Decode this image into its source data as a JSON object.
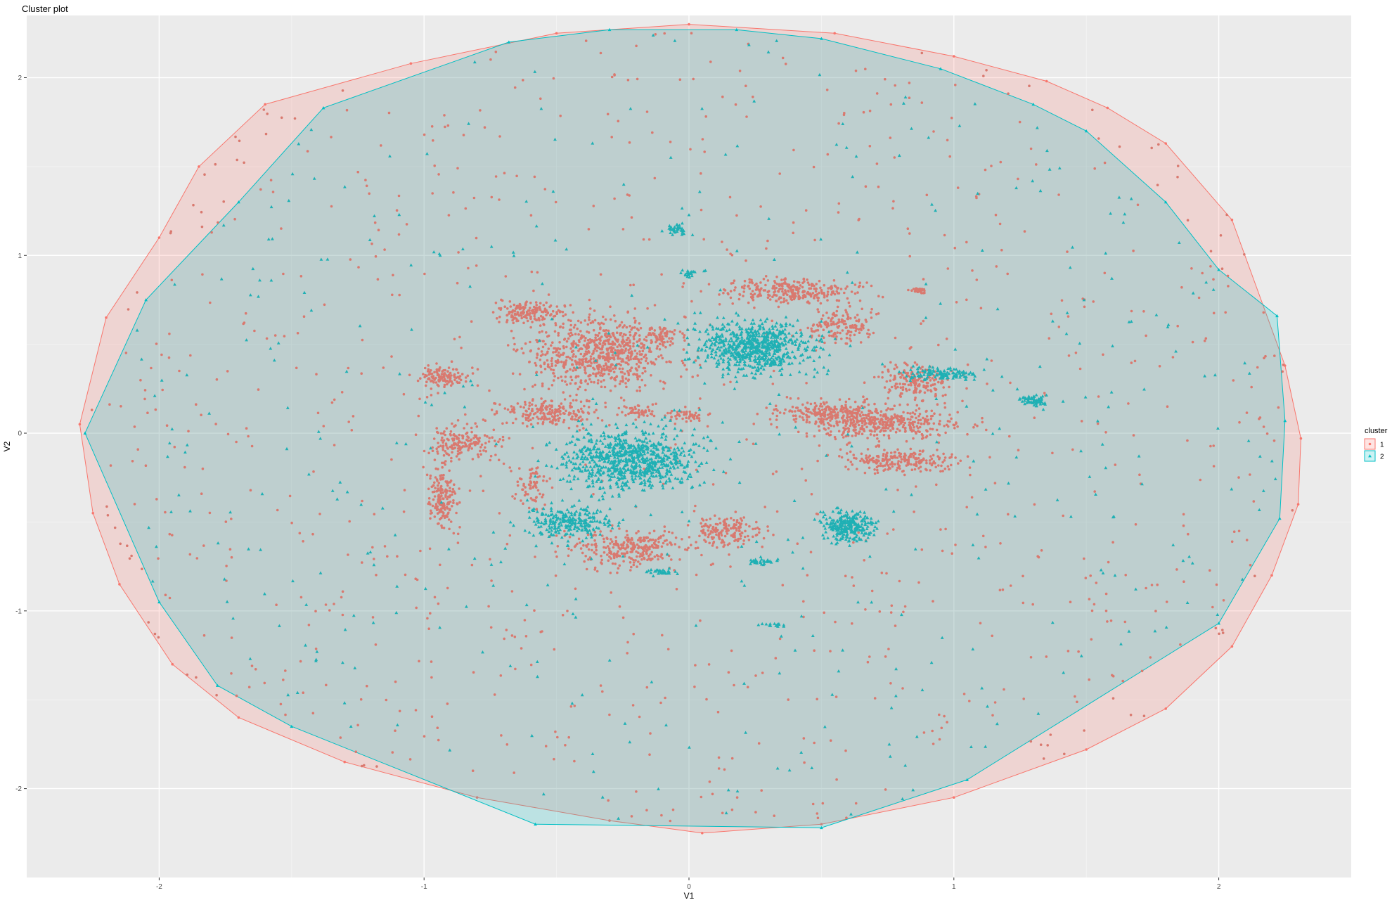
{
  "chart_data": {
    "type": "scatter",
    "title": "Cluster plot",
    "xlabel": "V1",
    "ylabel": "V2",
    "xlim": [
      -2.5,
      2.5
    ],
    "ylim": [
      -2.5,
      2.35
    ],
    "x_ticks": [
      -2,
      -1,
      0,
      1,
      2
    ],
    "y_ticks": [
      -2,
      -1,
      0,
      1,
      2
    ],
    "x_tick_labels": [
      "-2",
      "-1",
      "0",
      "1",
      "2"
    ],
    "y_tick_labels": [
      "-2",
      "-1",
      "0",
      "1",
      "2"
    ],
    "grid": true,
    "legend": {
      "title": "cluster",
      "position": "right",
      "entries": [
        {
          "label": "1",
          "shape": "circle",
          "color": "#F8766D"
        },
        {
          "label": "2",
          "shape": "triangle",
          "color": "#00BFC4"
        }
      ]
    },
    "series": [
      {
        "cluster": "1",
        "marker": "circle",
        "color": "#F8766D",
        "hull": [
          [
            2.31,
            -0.03
          ],
          [
            2.25,
            0.38
          ],
          [
            2.05,
            1.2
          ],
          [
            1.8,
            1.63
          ],
          [
            1.58,
            1.83
          ],
          [
            1.35,
            1.98
          ],
          [
            1.0,
            2.12
          ],
          [
            0.55,
            2.25
          ],
          [
            0.0,
            2.3
          ],
          [
            -0.5,
            2.25
          ],
          [
            -1.05,
            2.08
          ],
          [
            -1.6,
            1.85
          ],
          [
            -1.85,
            1.5
          ],
          [
            -2.0,
            1.1
          ],
          [
            -2.2,
            0.65
          ],
          [
            -2.3,
            0.05
          ],
          [
            -2.25,
            -0.45
          ],
          [
            -2.15,
            -0.85
          ],
          [
            -1.95,
            -1.3
          ],
          [
            -1.7,
            -1.6
          ],
          [
            -1.3,
            -1.85
          ],
          [
            -0.8,
            -2.05
          ],
          [
            -0.3,
            -2.18
          ],
          [
            0.05,
            -2.25
          ],
          [
            0.5,
            -2.2
          ],
          [
            1.0,
            -2.05
          ],
          [
            1.5,
            -1.78
          ],
          [
            1.8,
            -1.55
          ],
          [
            2.05,
            -1.2
          ],
          [
            2.2,
            -0.8
          ],
          [
            2.3,
            -0.4
          ]
        ],
        "clumps": [
          {
            "cx": -0.33,
            "cy": 0.45,
            "rx": 0.25,
            "ry": 0.2,
            "n": 750
          },
          {
            "cx": -0.62,
            "cy": 0.68,
            "rx": 0.13,
            "ry": 0.06,
            "n": 160
          },
          {
            "cx": -0.53,
            "cy": 0.12,
            "rx": 0.18,
            "ry": 0.08,
            "n": 200
          },
          {
            "cx": -0.85,
            "cy": -0.05,
            "rx": 0.13,
            "ry": 0.09,
            "n": 170
          },
          {
            "cx": -0.92,
            "cy": 0.32,
            "rx": 0.09,
            "ry": 0.05,
            "n": 120
          },
          {
            "cx": -0.6,
            "cy": -0.3,
            "rx": 0.05,
            "ry": 0.12,
            "n": 70
          },
          {
            "cx": -0.93,
            "cy": -0.38,
            "rx": 0.05,
            "ry": 0.19,
            "n": 170
          },
          {
            "cx": -0.22,
            "cy": -0.65,
            "rx": 0.22,
            "ry": 0.1,
            "n": 280
          },
          {
            "cx": 0.15,
            "cy": -0.55,
            "rx": 0.12,
            "ry": 0.08,
            "n": 160
          },
          {
            "cx": 0.38,
            "cy": 0.8,
            "rx": 0.23,
            "ry": 0.07,
            "n": 300
          },
          {
            "cx": 0.57,
            "cy": 0.6,
            "rx": 0.12,
            "ry": 0.09,
            "n": 150
          },
          {
            "cx": 0.55,
            "cy": 0.12,
            "rx": 0.22,
            "ry": 0.06,
            "n": 220
          },
          {
            "cx": 0.73,
            "cy": 0.05,
            "rx": 0.3,
            "ry": 0.09,
            "n": 380
          },
          {
            "cx": 0.8,
            "cy": -0.15,
            "rx": 0.22,
            "ry": 0.06,
            "n": 220
          },
          {
            "cx": 0.85,
            "cy": 0.28,
            "rx": 0.12,
            "ry": 0.1,
            "n": 170
          },
          {
            "cx": -0.18,
            "cy": 0.12,
            "rx": 0.07,
            "ry": 0.04,
            "n": 50
          },
          {
            "cx": -0.1,
            "cy": 0.55,
            "rx": 0.05,
            "ry": 0.05,
            "n": 50
          },
          {
            "cx": 0.0,
            "cy": 0.1,
            "rx": 0.09,
            "ry": 0.04,
            "n": 50
          },
          {
            "cx": 0.87,
            "cy": 0.8,
            "rx": 0.025,
            "ry": 0.015,
            "n": 25
          }
        ],
        "sparse_count": 950
      },
      {
        "cluster": "2",
        "marker": "triangle",
        "color": "#00BFC4",
        "hull": [
          [
            2.25,
            0.07
          ],
          [
            2.22,
            0.66
          ],
          [
            2.0,
            0.92
          ],
          [
            1.8,
            1.3
          ],
          [
            1.5,
            1.7
          ],
          [
            1.3,
            1.85
          ],
          [
            0.95,
            2.05
          ],
          [
            0.5,
            2.22
          ],
          [
            0.18,
            2.27
          ],
          [
            -0.3,
            2.27
          ],
          [
            -0.68,
            2.2
          ],
          [
            -1.38,
            1.83
          ],
          [
            -1.7,
            1.3
          ],
          [
            -2.05,
            0.75
          ],
          [
            -2.28,
            0.0
          ],
          [
            -2.0,
            -0.95
          ],
          [
            -1.78,
            -1.42
          ],
          [
            -1.5,
            -1.65
          ],
          [
            -0.58,
            -2.2
          ],
          [
            0.5,
            -2.22
          ],
          [
            1.05,
            -1.95
          ],
          [
            2.0,
            -1.07
          ],
          [
            2.23,
            -0.48
          ]
        ],
        "clumps": [
          {
            "cx": 0.25,
            "cy": 0.48,
            "rx": 0.2,
            "ry": 0.14,
            "n": 700
          },
          {
            "cx": -0.22,
            "cy": -0.15,
            "rx": 0.24,
            "ry": 0.16,
            "n": 800
          },
          {
            "cx": -0.45,
            "cy": -0.5,
            "rx": 0.16,
            "ry": 0.1,
            "n": 250
          },
          {
            "cx": 0.6,
            "cy": -0.52,
            "rx": 0.1,
            "ry": 0.08,
            "n": 260
          },
          {
            "cx": 0.95,
            "cy": 0.33,
            "rx": 0.14,
            "ry": 0.04,
            "n": 120
          },
          {
            "cx": 1.31,
            "cy": 0.18,
            "rx": 0.05,
            "ry": 0.03,
            "n": 60
          },
          {
            "cx": -0.05,
            "cy": 1.15,
            "rx": 0.04,
            "ry": 0.03,
            "n": 40
          },
          {
            "cx": 0.0,
            "cy": 0.9,
            "rx": 0.03,
            "ry": 0.02,
            "n": 20
          },
          {
            "cx": 0.28,
            "cy": -0.72,
            "rx": 0.06,
            "ry": 0.02,
            "n": 30
          },
          {
            "cx": -0.1,
            "cy": -0.78,
            "rx": 0.06,
            "ry": 0.02,
            "n": 30
          },
          {
            "cx": 0.32,
            "cy": -1.08,
            "rx": 0.05,
            "ry": 0.01,
            "n": 15
          }
        ],
        "sparse_count": 420
      }
    ]
  }
}
